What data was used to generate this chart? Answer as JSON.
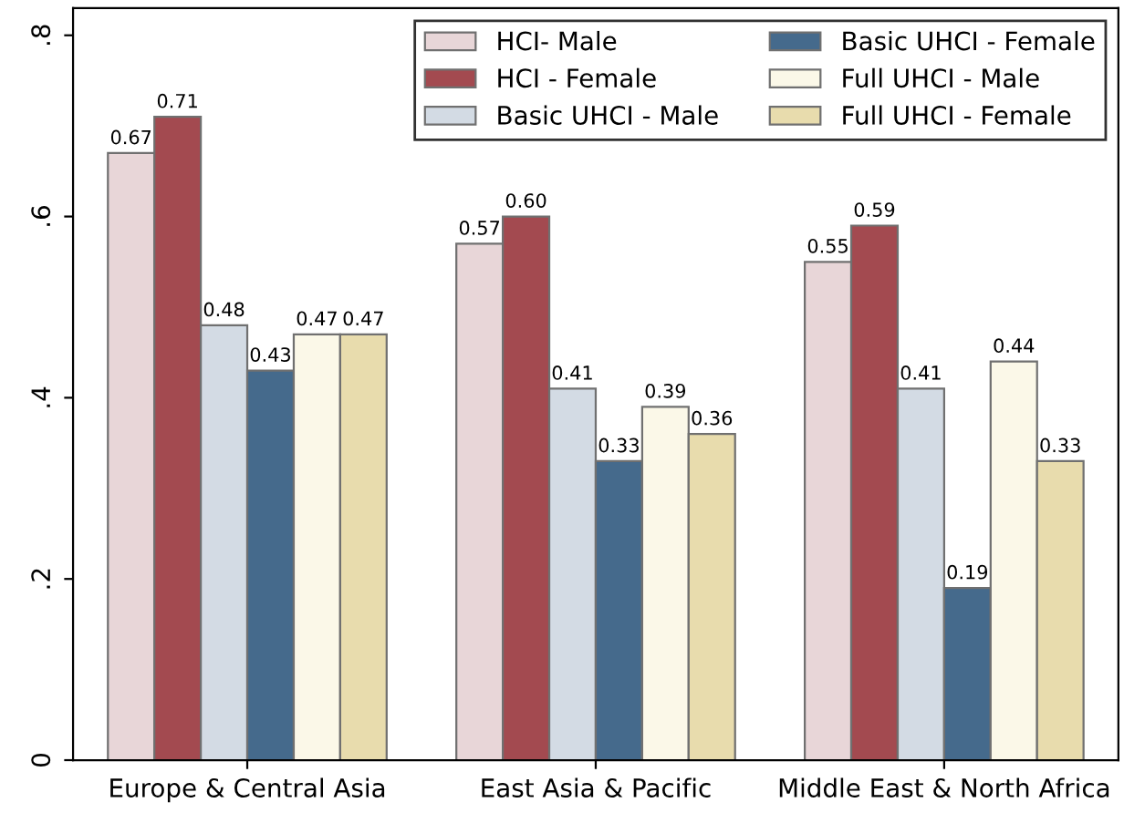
{
  "chart_data": {
    "type": "bar",
    "categories": [
      "Europe & Central Asia",
      "East Asia & Pacific",
      "Middle East & North Africa"
    ],
    "series": [
      {
        "name": "HCI- Male",
        "color": "#e8d6d8",
        "values": [
          0.67,
          0.57,
          0.55
        ],
        "value_labels": [
          "0.67",
          "0.57",
          "0.55"
        ]
      },
      {
        "name": "HCI - Female",
        "color": "#a34a50",
        "values": [
          0.71,
          0.6,
          0.59
        ],
        "value_labels": [
          "0.71",
          "0.60",
          "0.59"
        ]
      },
      {
        "name": "Basic UHCI - Male",
        "color": "#d3dbe4",
        "values": [
          0.48,
          0.41,
          0.41
        ],
        "value_labels": [
          "0.48",
          "0.41",
          "0.41"
        ]
      },
      {
        "name": "Basic UHCI - Female",
        "color": "#456a8c",
        "values": [
          0.43,
          0.33,
          0.19
        ],
        "value_labels": [
          "0.43",
          "0.33",
          "0.19"
        ]
      },
      {
        "name": "Full UHCI - Male",
        "color": "#fbf8e8",
        "values": [
          0.47,
          0.39,
          0.44
        ],
        "value_labels": [
          "0.47",
          "0.39",
          "0.44"
        ]
      },
      {
        "name": "Full UHCI - Female",
        "color": "#e8dcad",
        "values": [
          0.47,
          0.36,
          0.33
        ],
        "value_labels": [
          "0.47",
          "0.36",
          "0.33"
        ]
      }
    ],
    "ylim": [
      0,
      0.83
    ],
    "yticks": [
      {
        "value": 0,
        "label": "0"
      },
      {
        "value": 0.2,
        "label": ".2"
      },
      {
        "value": 0.4,
        "label": ".4"
      },
      {
        "value": 0.6,
        "label": ".6"
      },
      {
        "value": 0.8,
        "label": ".8"
      }
    ],
    "grid": false,
    "legend": "top right"
  }
}
